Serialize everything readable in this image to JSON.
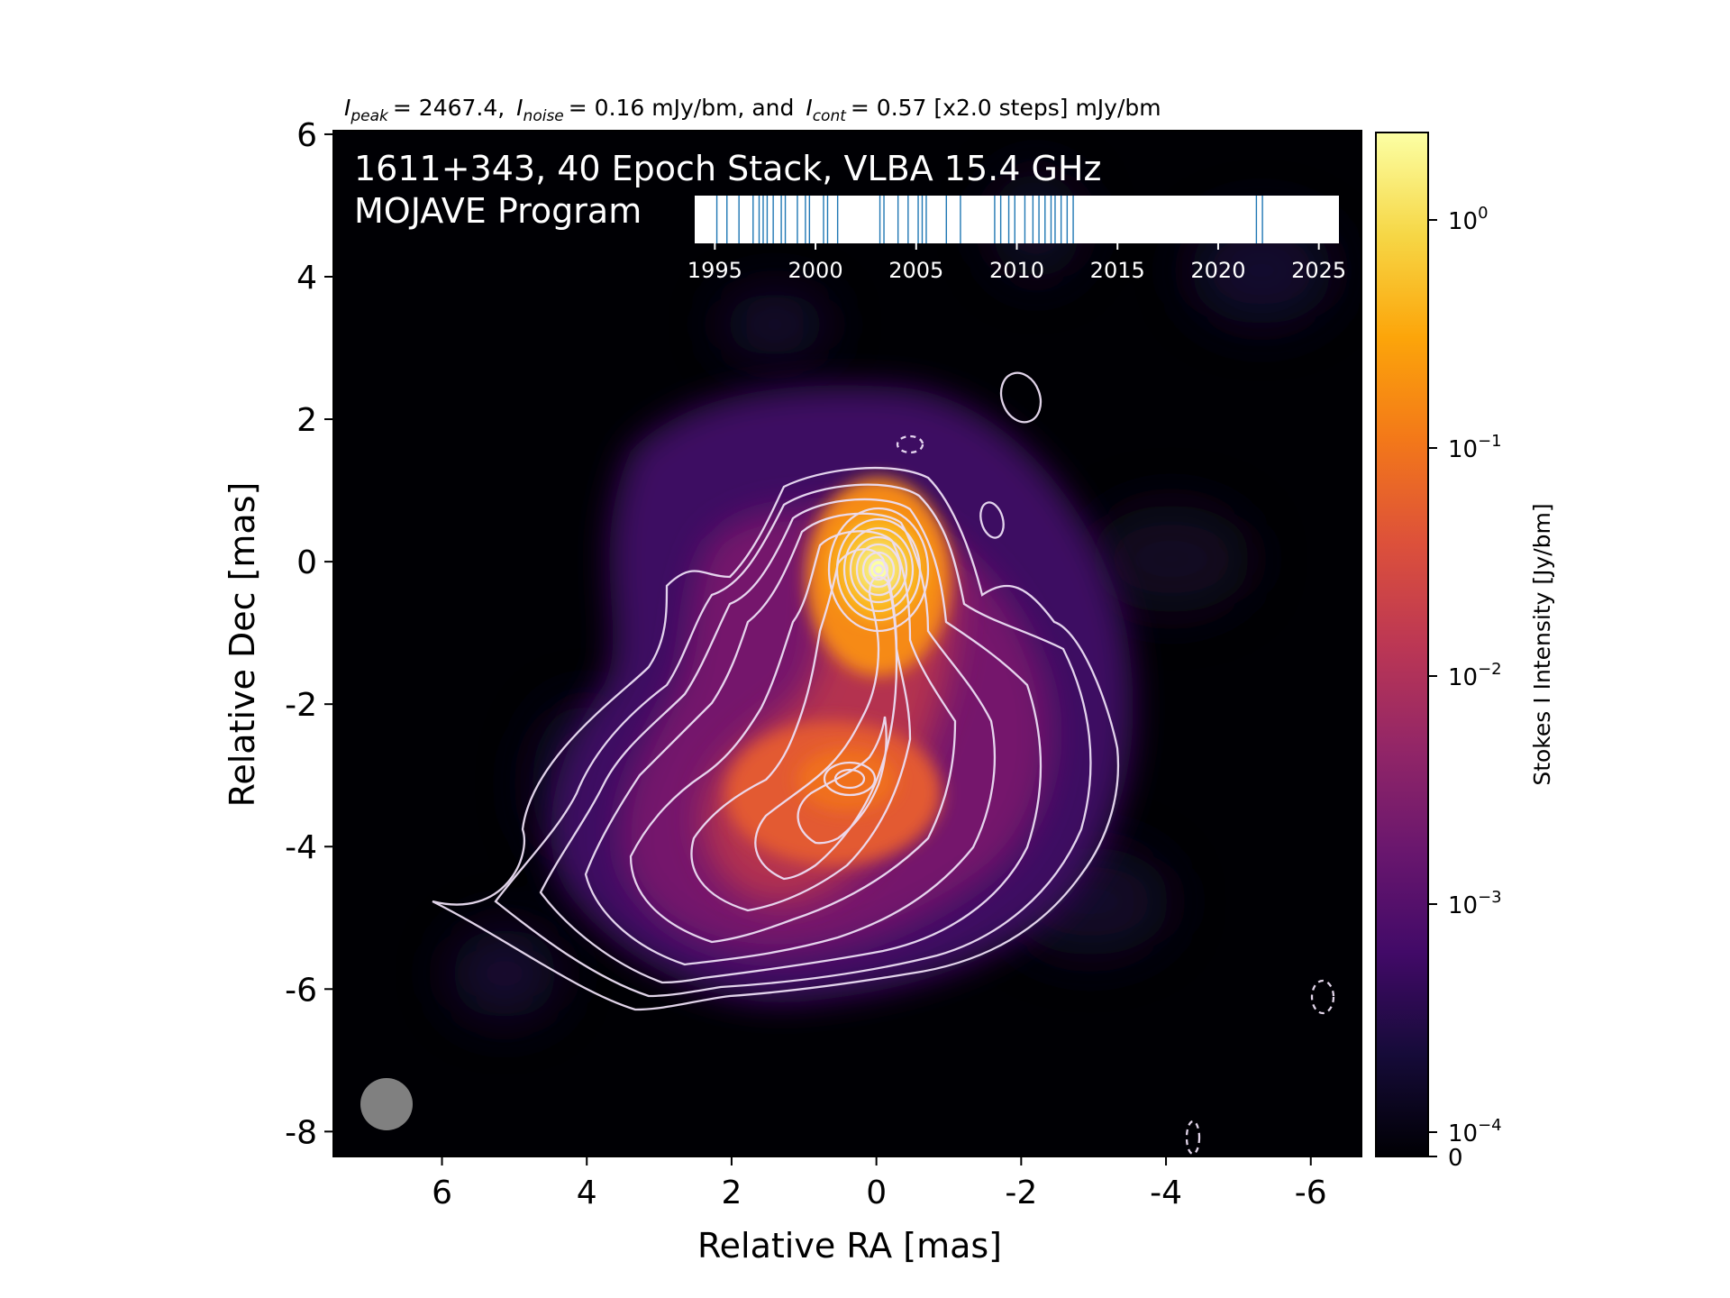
{
  "chart_data": {
    "type": "heatmap",
    "header": {
      "peak_label": "peak",
      "peak_value": "= 2467.4,",
      "noise_label": "noise",
      "noise_value": "= 0.16 mJy/bm, and",
      "cont_label": "cont",
      "cont_value": "= 0.57 [x2.0 steps] mJy/bm"
    },
    "title_line1": "1611+343, 40 Epoch Stack, VLBA 15.4 GHz",
    "title_line2": "MOJAVE Program",
    "xlabel": "Relative RA [mas]",
    "ylabel": "Relative Dec [mas]",
    "xlim": [
      7.5,
      -6.7
    ],
    "ylim": [
      -8.35,
      6.05
    ],
    "x_ticks": [
      "6",
      "4",
      "2",
      "0",
      "-2",
      "-4",
      "-6"
    ],
    "y_ticks": [
      "6",
      "4",
      "2",
      "0",
      "-2",
      "-4",
      "-6",
      "-8"
    ],
    "colorbar": {
      "label": "Stokes I Intensity [Jy/bm]",
      "scale": "log",
      "colormap": "inferno",
      "vmin": 0,
      "vmax": 2.4674,
      "ticks": [
        {
          "value": 1,
          "base": "10",
          "exp": "0"
        },
        {
          "value": 0.1,
          "base": "10",
          "exp": "−1"
        },
        {
          "value": 0.01,
          "base": "10",
          "exp": "−2"
        },
        {
          "value": 0.001,
          "base": "10",
          "exp": "−3"
        },
        {
          "value": 0.0001,
          "base": "10",
          "exp": "−4"
        },
        {
          "value": 0,
          "base": "0",
          "exp": ""
        }
      ]
    },
    "epoch_timeline": {
      "range": [
        1994,
        2026
      ],
      "ticks": [
        "1995",
        "2000",
        "2005",
        "2010",
        "2015",
        "2020",
        "2025"
      ],
      "epoch_count": 40,
      "epochs": [
        1995.1,
        1995.6,
        1996.2,
        1996.9,
        1997.2,
        1997.4,
        1997.6,
        1997.9,
        1998.3,
        1998.5,
        1999.1,
        1999.5,
        1999.7,
        2000.4,
        2000.6,
        2001.1,
        2003.2,
        2003.4,
        2004.1,
        2004.6,
        2005.1,
        2005.3,
        2005.5,
        2006.5,
        2007.2,
        2008.9,
        2009.2,
        2009.6,
        2009.9,
        2010.4,
        2010.8,
        2011.1,
        2011.4,
        2011.7,
        2011.9,
        2012.2,
        2012.5,
        2012.8,
        2021.9,
        2022.2
      ],
      "color": "#1f77b4"
    },
    "components": [
      {
        "name": "core",
        "ra": -0.1,
        "dec": 0.0,
        "peak_jy": 2.4674
      },
      {
        "name": "jet-knot",
        "ra": 0.5,
        "dec": -3.0,
        "peak_jy": 0.12
      }
    ],
    "beam": {
      "shape": "circular",
      "fwhm_mas": 0.9,
      "ra": 6.9,
      "dec": -7.6,
      "color": "#808080"
    },
    "contour_color": "#ecdff5",
    "negative_contour_style": "dashed"
  }
}
